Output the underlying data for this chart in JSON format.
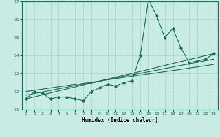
{
  "title": "",
  "xlabel": "Humidex (Indice chaleur)",
  "ylabel": "",
  "xlim": [
    -0.5,
    23.5
  ],
  "ylim": [
    11,
    17
  ],
  "xticks": [
    0,
    1,
    2,
    3,
    4,
    5,
    6,
    7,
    8,
    9,
    10,
    11,
    12,
    13,
    14,
    15,
    16,
    17,
    18,
    19,
    20,
    21,
    22,
    23
  ],
  "yticks": [
    11,
    12,
    13,
    14,
    15,
    16,
    17
  ],
  "bg_color": "#c8ebe3",
  "line_color": "#1a6b5a",
  "grid_color": "#aad4cc",
  "series_jagged": {
    "x": [
      0,
      1,
      2,
      3,
      4,
      5,
      6,
      7,
      8,
      9,
      10,
      11,
      12,
      13,
      14,
      15,
      16,
      17,
      18,
      19,
      20,
      21,
      22,
      23
    ],
    "y": [
      11.6,
      12.0,
      11.9,
      11.6,
      11.7,
      11.7,
      11.6,
      11.5,
      12.0,
      12.2,
      12.4,
      12.3,
      12.5,
      12.6,
      14.0,
      17.1,
      16.2,
      15.0,
      15.5,
      14.4,
      13.6,
      13.7,
      13.8,
      14.1
    ]
  },
  "series_trend1": {
    "x": [
      0,
      23
    ],
    "y": [
      11.6,
      14.1
    ]
  },
  "series_trend2": {
    "x": [
      0,
      23
    ],
    "y": [
      11.8,
      13.8
    ]
  },
  "series_trend3": {
    "x": [
      0,
      23
    ],
    "y": [
      12.0,
      13.5
    ]
  }
}
